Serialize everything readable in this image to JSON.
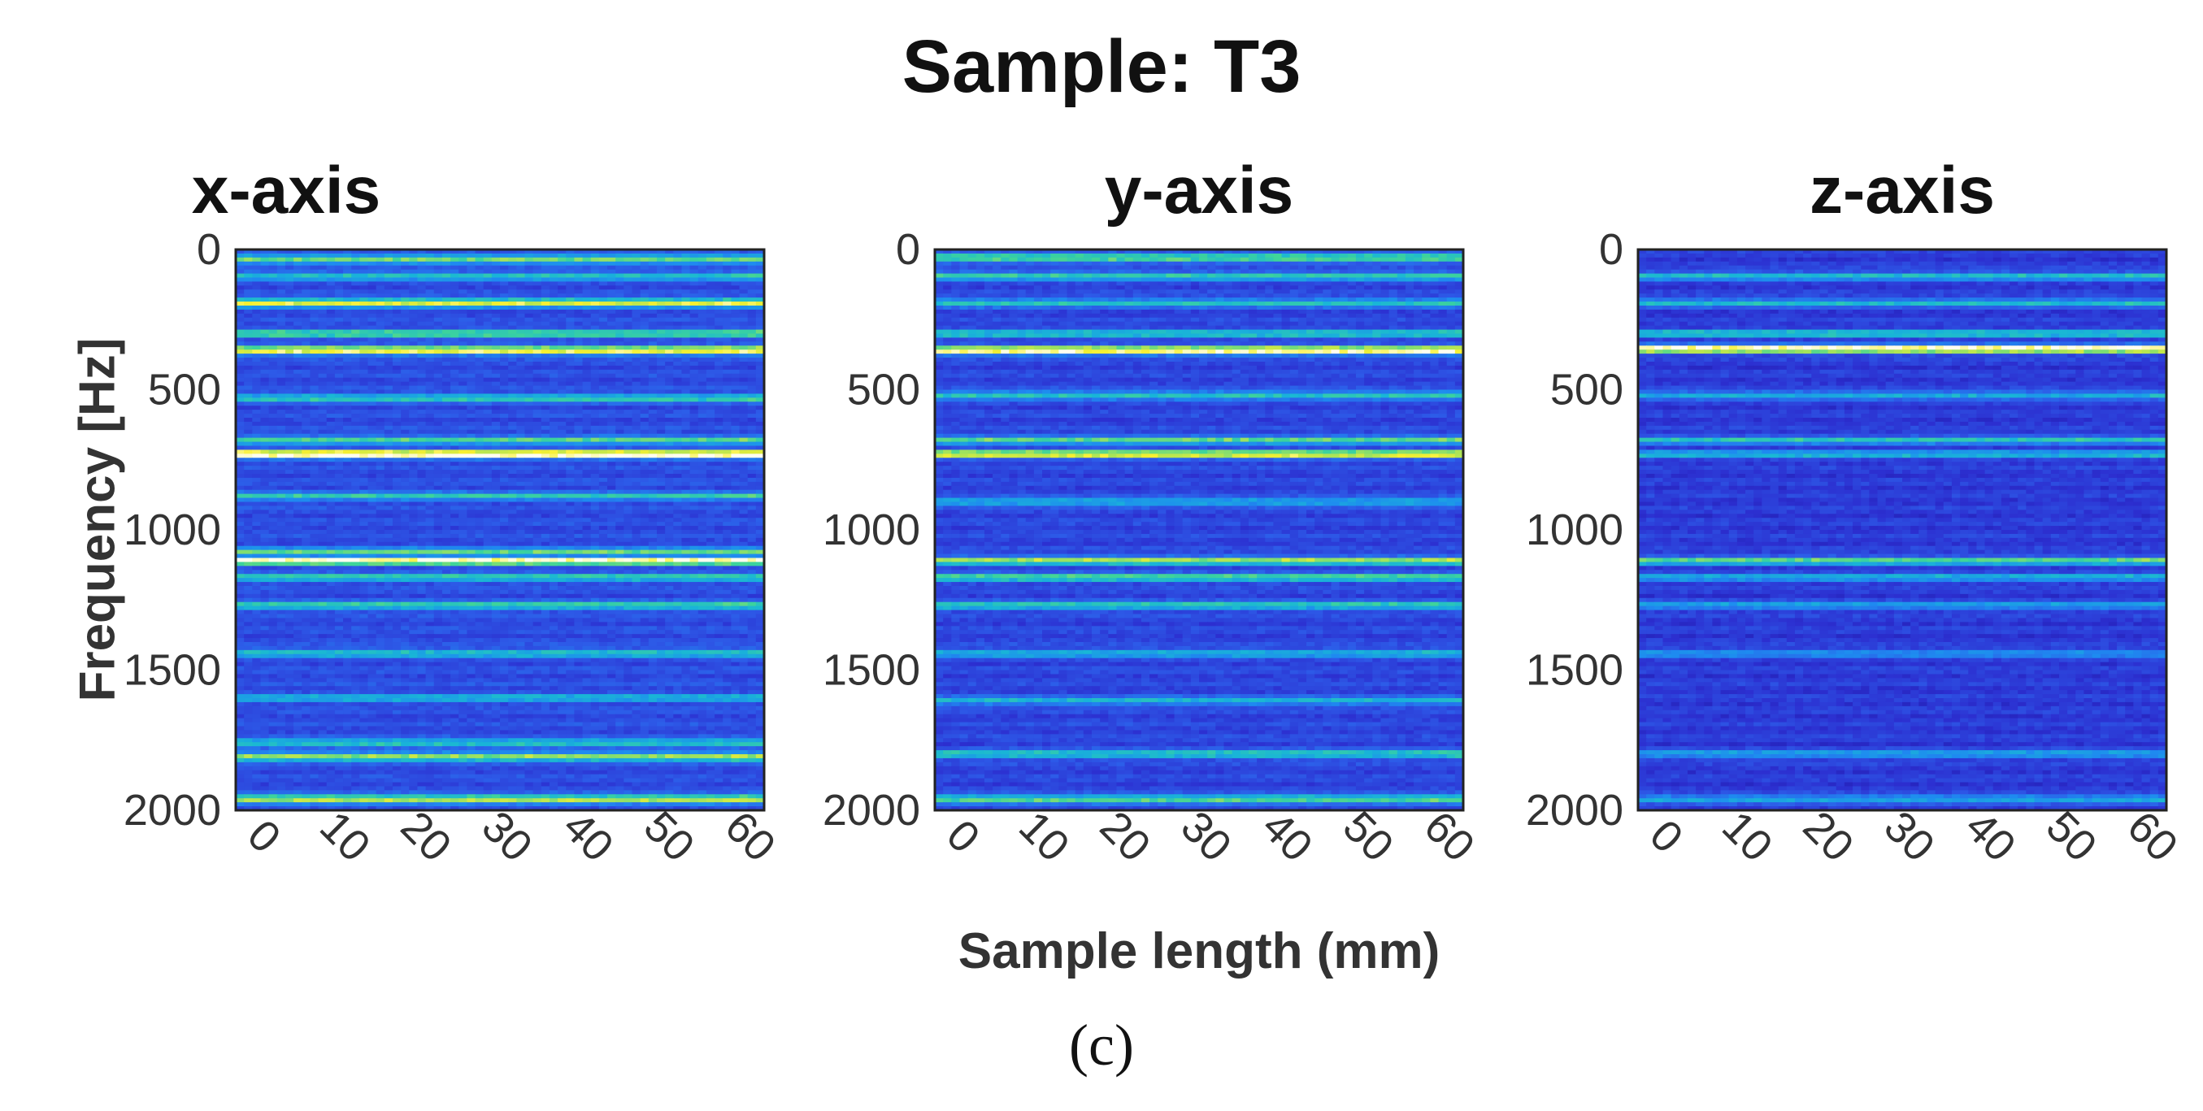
{
  "figure": {
    "title": "Sample: T3",
    "caption": "(c)",
    "xlabel": "Sample length (mm)",
    "ylabel": "Frequency [Hz]"
  },
  "colormap": [
    "#1a0f9a",
    "#2c2fd0",
    "#2d5be8",
    "#1e8bf0",
    "#19b6d6",
    "#3ed49a",
    "#a6e35a",
    "#f7f030",
    "#fffdf0"
  ],
  "chart_data": [
    {
      "type": "heatmap",
      "title": "x-axis",
      "xlabel": "Sample length (mm)",
      "ylabel": "Frequency [Hz]",
      "xlim": [
        0,
        63
      ],
      "ylim": [
        2000,
        0
      ],
      "xticks": [
        "0",
        "10",
        "20",
        "30",
        "40",
        "50",
        "60"
      ],
      "yticks": [
        "0",
        "500",
        "1000",
        "1500",
        "2000"
      ],
      "base_level": 0.18,
      "bands": [
        {
          "freq": 35,
          "intensity": 0.55
        },
        {
          "freq": 95,
          "intensity": 0.38
        },
        {
          "freq": 190,
          "intensity": 0.72
        },
        {
          "freq": 300,
          "intensity": 0.5
        },
        {
          "freq": 360,
          "intensity": 0.82
        },
        {
          "freq": 530,
          "intensity": 0.42
        },
        {
          "freq": 680,
          "intensity": 0.45
        },
        {
          "freq": 730,
          "intensity": 1.0
        },
        {
          "freq": 880,
          "intensity": 0.38
        },
        {
          "freq": 1080,
          "intensity": 0.5
        },
        {
          "freq": 1110,
          "intensity": 0.88
        },
        {
          "freq": 1170,
          "intensity": 0.42
        },
        {
          "freq": 1270,
          "intensity": 0.45
        },
        {
          "freq": 1440,
          "intensity": 0.38
        },
        {
          "freq": 1600,
          "intensity": 0.33
        },
        {
          "freq": 1760,
          "intensity": 0.42
        },
        {
          "freq": 1810,
          "intensity": 0.62
        },
        {
          "freq": 1960,
          "intensity": 0.68
        }
      ]
    },
    {
      "type": "heatmap",
      "title": "y-axis",
      "xlabel": "Sample length (mm)",
      "ylabel": "Frequency [Hz]",
      "xlim": [
        0,
        63
      ],
      "ylim": [
        2000,
        0
      ],
      "xticks": [
        "0",
        "10",
        "20",
        "30",
        "40",
        "50",
        "60"
      ],
      "yticks": [
        "0",
        "500",
        "1000",
        "1500",
        "2000"
      ],
      "base_level": 0.16,
      "bands": [
        {
          "freq": 30,
          "intensity": 0.58
        },
        {
          "freq": 95,
          "intensity": 0.45
        },
        {
          "freq": 190,
          "intensity": 0.4
        },
        {
          "freq": 300,
          "intensity": 0.42
        },
        {
          "freq": 360,
          "intensity": 0.92
        },
        {
          "freq": 520,
          "intensity": 0.42
        },
        {
          "freq": 680,
          "intensity": 0.5
        },
        {
          "freq": 730,
          "intensity": 0.78
        },
        {
          "freq": 900,
          "intensity": 0.35
        },
        {
          "freq": 1110,
          "intensity": 0.62
        },
        {
          "freq": 1170,
          "intensity": 0.5
        },
        {
          "freq": 1270,
          "intensity": 0.45
        },
        {
          "freq": 1440,
          "intensity": 0.35
        },
        {
          "freq": 1610,
          "intensity": 0.35
        },
        {
          "freq": 1800,
          "intensity": 0.45
        },
        {
          "freq": 1960,
          "intensity": 0.55
        }
      ]
    },
    {
      "type": "heatmap",
      "title": "z-axis",
      "xlabel": "Sample length (mm)",
      "ylabel": "Frequency [Hz]",
      "xlim": [
        0,
        63
      ],
      "ylim": [
        2000,
        0
      ],
      "xticks": [
        "0",
        "10",
        "20",
        "30",
        "40",
        "50",
        "60"
      ],
      "yticks": [
        "0",
        "500",
        "1000",
        "1500",
        "2000"
      ],
      "base_level": 0.13,
      "bands": [
        {
          "freq": 95,
          "intensity": 0.42
        },
        {
          "freq": 190,
          "intensity": 0.4
        },
        {
          "freq": 300,
          "intensity": 0.45
        },
        {
          "freq": 355,
          "intensity": 1.0
        },
        {
          "freq": 520,
          "intensity": 0.36
        },
        {
          "freq": 680,
          "intensity": 0.42
        },
        {
          "freq": 730,
          "intensity": 0.38
        },
        {
          "freq": 1110,
          "intensity": 0.55
        },
        {
          "freq": 1170,
          "intensity": 0.36
        },
        {
          "freq": 1270,
          "intensity": 0.32
        },
        {
          "freq": 1440,
          "intensity": 0.28
        },
        {
          "freq": 1800,
          "intensity": 0.33
        },
        {
          "freq": 1960,
          "intensity": 0.36
        }
      ]
    }
  ]
}
